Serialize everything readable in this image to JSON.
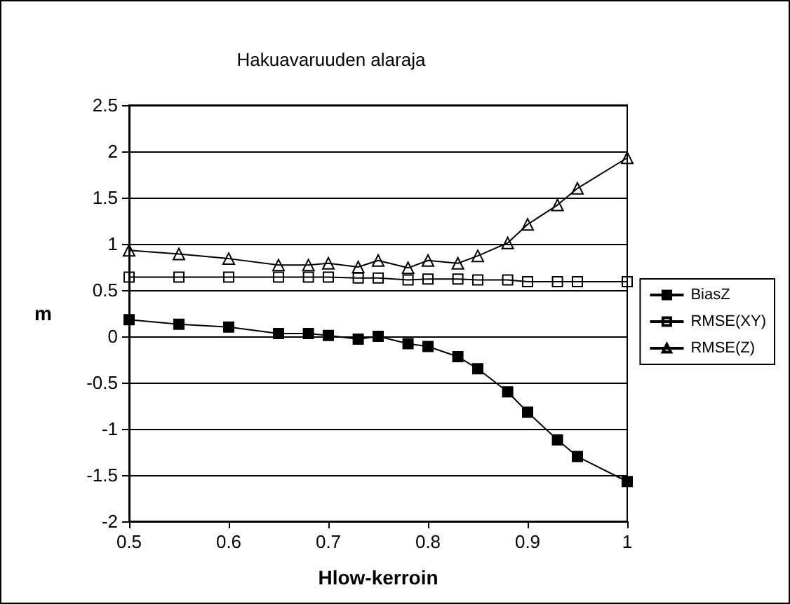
{
  "chart_data": {
    "type": "line",
    "title": "Hakuavaruuden alaraja",
    "xlabel": "Hlow-kerroin",
    "ylabel": "m",
    "x": [
      0.5,
      0.55,
      0.6,
      0.65,
      0.68,
      0.7,
      0.73,
      0.75,
      0.78,
      0.8,
      0.83,
      0.85,
      0.88,
      0.9,
      0.93,
      0.95,
      1.0
    ],
    "series": [
      {
        "name": "BiasZ",
        "color": "#000000",
        "marker": "square",
        "values": [
          0.18,
          0.13,
          0.1,
          0.03,
          0.03,
          0.01,
          -0.03,
          0.0,
          -0.08,
          -0.11,
          -0.22,
          -0.35,
          -0.6,
          -0.82,
          -1.12,
          -1.3,
          -1.57
        ]
      },
      {
        "name": "RMSE(XY)",
        "color": "#000000",
        "marker": "square",
        "values": [
          0.64,
          0.64,
          0.64,
          0.64,
          0.64,
          0.64,
          0.63,
          0.63,
          0.61,
          0.62,
          0.62,
          0.61,
          0.61,
          0.59,
          0.59,
          0.59,
          0.59
        ]
      },
      {
        "name": "RMSE(Z)",
        "color": "#000000",
        "marker": "triangle",
        "values": [
          0.93,
          0.89,
          0.84,
          0.77,
          0.77,
          0.79,
          0.75,
          0.82,
          0.74,
          0.82,
          0.79,
          0.87,
          1.01,
          1.21,
          1.42,
          1.6,
          1.93
        ]
      }
    ],
    "xlim": [
      0.5,
      1.0
    ],
    "xticks": [
      0.5,
      0.6,
      0.7,
      0.8,
      0.9,
      1
    ],
    "ylim": [
      -2,
      2.5
    ],
    "yticks": [
      -2,
      -1.5,
      -1,
      -0.5,
      0,
      0.5,
      1,
      1.5,
      2,
      2.5
    ],
    "grid": "y",
    "legend": "right",
    "line_style": "solid"
  }
}
